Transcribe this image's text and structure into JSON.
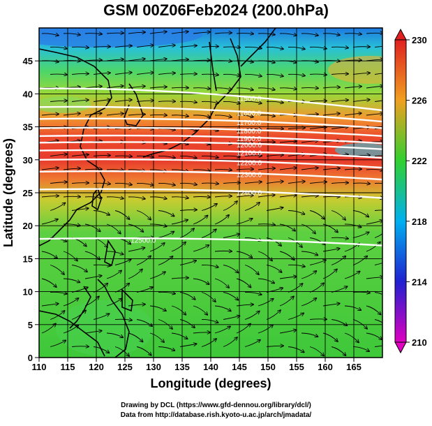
{
  "title": "GSM 00Z06Feb2024 (200.0hPa)",
  "xlabel": "Longitude (degrees)",
  "ylabel": "Latitude  (degrees)",
  "x_ticks": [
    "110",
    "115",
    "120",
    "125",
    "130",
    "135",
    "140",
    "145",
    "150",
    "155",
    "160",
    "165"
  ],
  "y_ticks": [
    "0",
    "5",
    "10",
    "15",
    "20",
    "25",
    "30",
    "35",
    "40",
    "45"
  ],
  "xlim": [
    110,
    170
  ],
  "ylim": [
    0,
    50
  ],
  "colorbar": {
    "ticks": [
      "210",
      "214",
      "218",
      "222",
      "226",
      "230"
    ],
    "min": 210,
    "max": 230,
    "colors": [
      "#e000c0",
      "#2020d0",
      "#00b0f0",
      "#30d030",
      "#f0a020",
      "#e02020"
    ]
  },
  "contours": [
    {
      "label": "11500.0",
      "lat_west": 40.8,
      "lat_east": 37.5
    },
    {
      "label": "11600.0",
      "lat_west": 38.0,
      "lat_east": 35.8
    },
    {
      "label": "11700.0",
      "lat_west": 36.2,
      "lat_east": 34.8
    },
    {
      "label": "11800.0",
      "lat_west": 34.8,
      "lat_east": 33.6
    },
    {
      "label": "11900.0",
      "lat_west": 33.6,
      "lat_east": 32.5
    },
    {
      "label": "12000.0",
      "lat_west": 32.6,
      "lat_east": 31.6
    },
    {
      "label": "12100.0",
      "lat_west": 31.4,
      "lat_east": 30.3
    },
    {
      "label": "12200.0",
      "lat_west": 30.0,
      "lat_east": 28.8
    },
    {
      "label": "12300.0",
      "lat_west": 28.2,
      "lat_east": 27.0
    },
    {
      "label": "12400.0",
      "lat_west": 25.5,
      "lat_east": 24.2
    },
    {
      "label": "12500.0",
      "lat_west": 18.0,
      "lat_east": 17.0
    }
  ],
  "credits": [
    "Drawing by DCL (https://www.gfd-dennou.org/library/dcl/)",
    "Data from http://database.rish.kyoto-u.ac.jp/arch/jmadata/"
  ]
}
